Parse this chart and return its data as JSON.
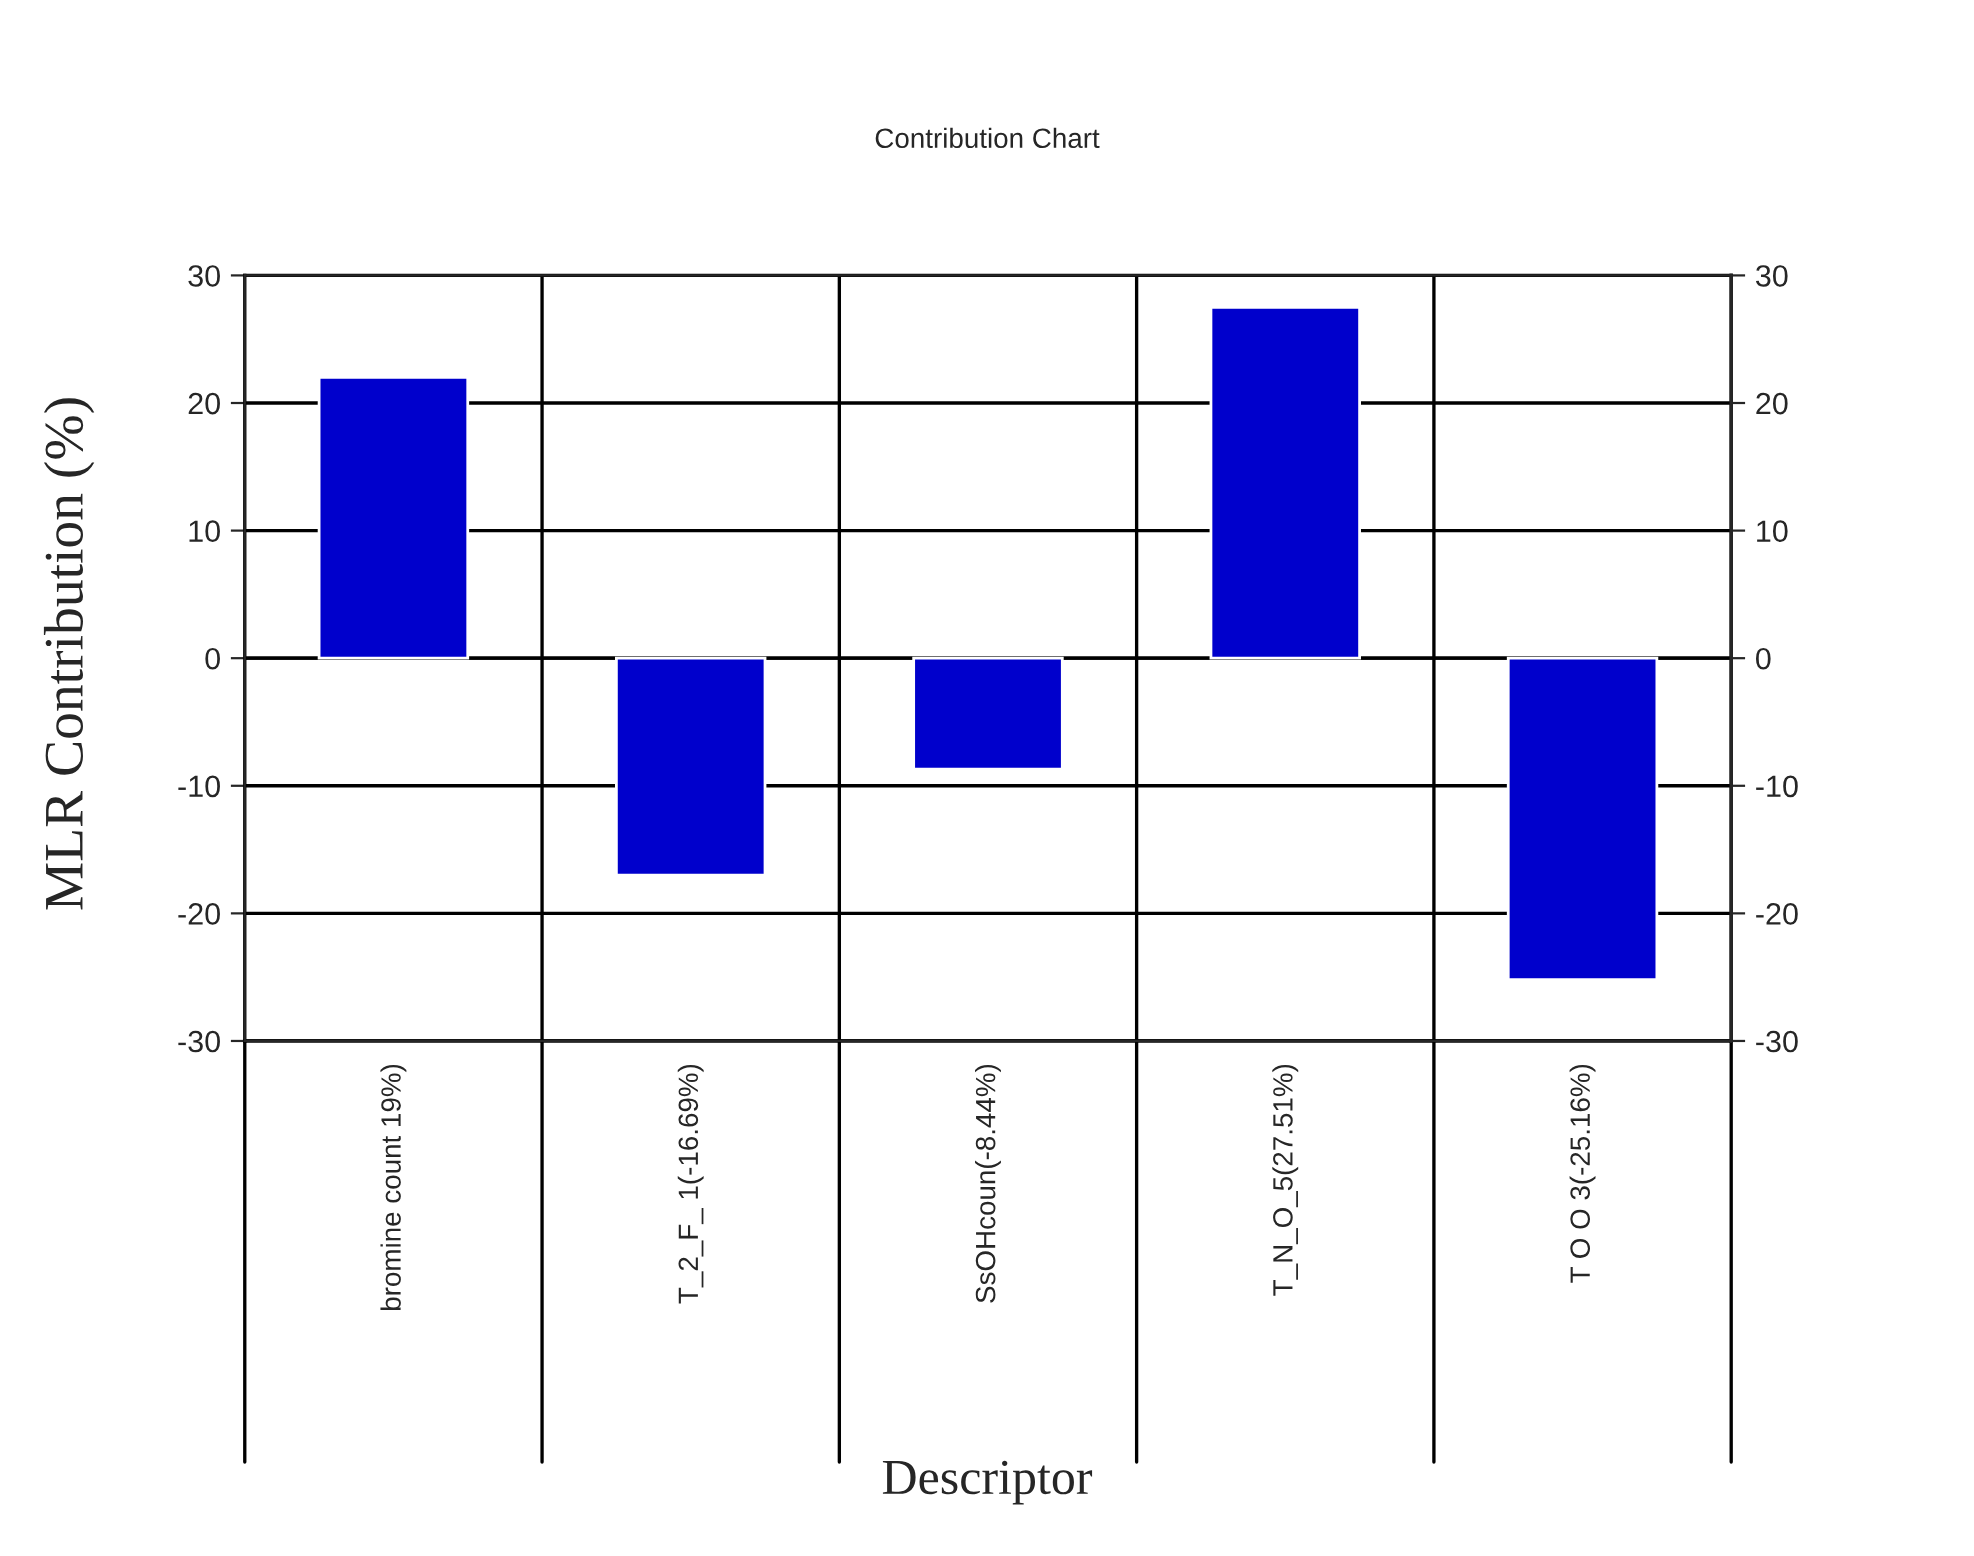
{
  "chart_data": {
    "type": "bar",
    "title": "Contribution Chart",
    "xlabel": "Descriptor",
    "ylabel": "MLR Contribution (%)",
    "categories": [
      "bromine count 19%)",
      "T_2_F_ 1(-16.69%)",
      "SsOHcoun(-8.44%)",
      "T_N_O_5(27.51%)",
      "T O O 3(-25.16%)"
    ],
    "values": [
      22,
      -17,
      -8.7,
      27.5,
      -25.2
    ],
    "color": "#0000cc",
    "ylim": [
      -30,
      30
    ],
    "yticks": [
      -30,
      -20,
      -10,
      0,
      10,
      20,
      30
    ],
    "y2lim": [
      -30,
      30
    ],
    "y2ticks": [
      -30,
      -20,
      -10,
      0,
      10,
      20,
      30
    ],
    "grid": "y",
    "legend": false
  }
}
